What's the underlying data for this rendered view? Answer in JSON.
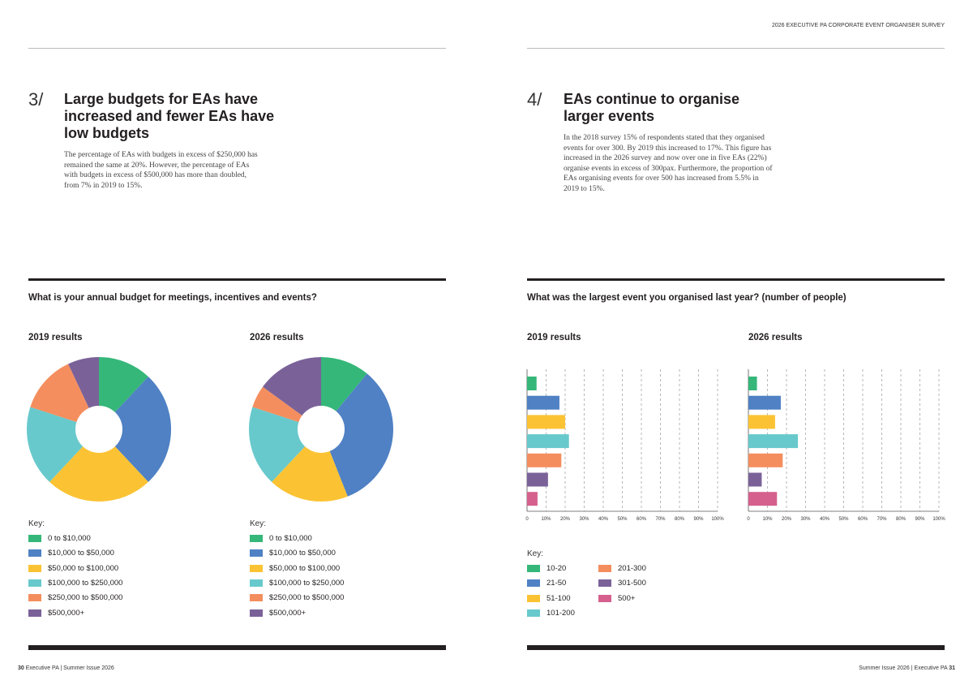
{
  "header": {
    "running_title": "2026 EXECUTIVE PA CORPORATE EVENT ORGANISER SURVEY"
  },
  "left": {
    "number": "3/",
    "title": "Large budgets for EAs have increased and fewer EAs have low budgets",
    "body": "The percentage of EAs with budgets in excess of $250,000 has remained the same at 20%. However, the percentage of EAs with budgets in excess of $500,000 has more than doubled, from 7% in 2019 to 15%.",
    "question": "What is your annual budget for meetings, incentives and events?"
  },
  "right": {
    "number": "4/",
    "title": "EAs continue to organise larger events",
    "body": "In the 2018 survey 15% of respondents stated that they organised events for over 300. By 2019 this increased to 17%. This figure has increased in the 2026 survey and now over one in five EAs (22%) organise events in excess of 300pax. Furthermore, the proportion of EAs organising events for over 500 has increased from 5.5% in 2019 to 15%.",
    "question": "What was the largest event you organised last year? (number of people)"
  },
  "key_label": "Key:",
  "colors": [
    "#35b779",
    "#4f81c4",
    "#fbc334",
    "#68c9cc",
    "#f48e5e",
    "#7a6299",
    "#d5608e"
  ],
  "chart_data": [
    {
      "type": "pie",
      "donut": true,
      "title": "2019 results",
      "categories": [
        "0 to $10,000",
        "$10,000 to $50,000",
        "$50,000 to $100,000",
        "$100,000 to $250,000",
        "$250,000 to $500,000",
        "$500,000+"
      ],
      "values": [
        12,
        26,
        24,
        18,
        13,
        7
      ],
      "unit": "%"
    },
    {
      "type": "pie",
      "donut": true,
      "title": "2026 results",
      "categories": [
        "0 to $10,000",
        "$10,000 to $50,000",
        "$50,000 to $100,000",
        "$100,000 to $250,000",
        "$250,000 to $500,000",
        "$500,000+"
      ],
      "values": [
        11,
        33,
        18,
        18,
        5,
        15
      ],
      "unit": "%"
    },
    {
      "type": "bar",
      "orientation": "horizontal",
      "title": "2019 results",
      "categories": [
        "10-20",
        "21-50",
        "51-100",
        "101-200",
        "201-300",
        "301-500",
        "500+"
      ],
      "values": [
        5,
        17,
        20,
        22,
        18,
        11,
        5.5
      ],
      "xlim": [
        0,
        100
      ],
      "xticks": [
        "0",
        "10%",
        "20%",
        "30%",
        "40%",
        "50%",
        "60%",
        "70%",
        "80%",
        "90%",
        "100%"
      ],
      "grid": "dashed vertical"
    },
    {
      "type": "bar",
      "orientation": "horizontal",
      "title": "2026 results",
      "categories": [
        "10-20",
        "21-50",
        "51-100",
        "101-200",
        "201-300",
        "301-500",
        "500+"
      ],
      "values": [
        4.5,
        17,
        14,
        26,
        18,
        7,
        15
      ],
      "xlim": [
        0,
        100
      ],
      "xticks": [
        "0",
        "10%",
        "20%",
        "30%",
        "40%",
        "50%",
        "60%",
        "70%",
        "80%",
        "90%",
        "100%"
      ],
      "grid": "dashed vertical"
    }
  ],
  "footer": {
    "left_page": "30",
    "left_text": "Executive PA | Summer Issue 2026",
    "right_text": "Summer Issue 2026 | Executive PA",
    "right_page": "31"
  }
}
